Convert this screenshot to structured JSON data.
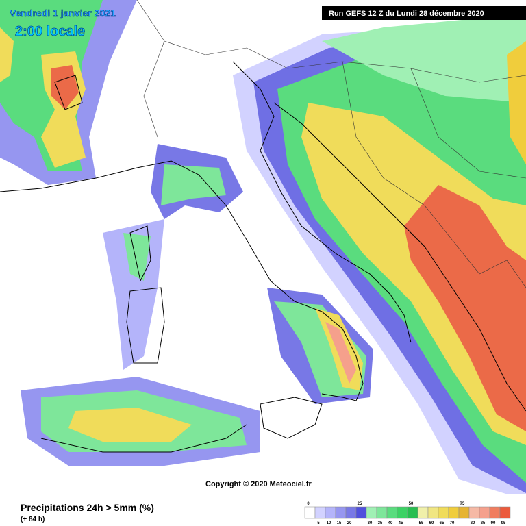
{
  "header": {
    "date": "Vendredi 1 janvier 2021",
    "time": "2:00 locale",
    "run": "Run GEFS 12 Z du Lundi 28 décembre 2020"
  },
  "copyright": "Copyright © 2020 Meteociel.fr",
  "legend": {
    "title": "Precipitations 24h > 5mm (%)",
    "lead_time": "(+ 84 h)",
    "swatches": [
      {
        "value": 0,
        "color": "#ffffff"
      },
      {
        "value": 5,
        "color": "#d2d2ff"
      },
      {
        "value": 10,
        "color": "#b4b4fa"
      },
      {
        "value": 15,
        "color": "#9696f0"
      },
      {
        "value": 20,
        "color": "#7878e6"
      },
      {
        "value": 25,
        "color": "#5050dc"
      },
      {
        "value": 30,
        "color": "#a0f0b4"
      },
      {
        "value": 35,
        "color": "#7ee69a"
      },
      {
        "value": 40,
        "color": "#5adc7e"
      },
      {
        "value": 45,
        "color": "#3cd264"
      },
      {
        "value": 50,
        "color": "#28be50"
      },
      {
        "value": 55,
        "color": "#f0f0aa"
      },
      {
        "value": 60,
        "color": "#f0e682"
      },
      {
        "value": 65,
        "color": "#f0dc5a"
      },
      {
        "value": 70,
        "color": "#f0cd3c"
      },
      {
        "value": 75,
        "color": "#e6b432"
      },
      {
        "value": 80,
        "color": "#f5b9a5"
      },
      {
        "value": 85,
        "color": "#f5a08c"
      },
      {
        "value": 90,
        "color": "#f07d5f"
      },
      {
        "value": 95,
        "color": "#eb5a3c"
      }
    ]
  }
}
